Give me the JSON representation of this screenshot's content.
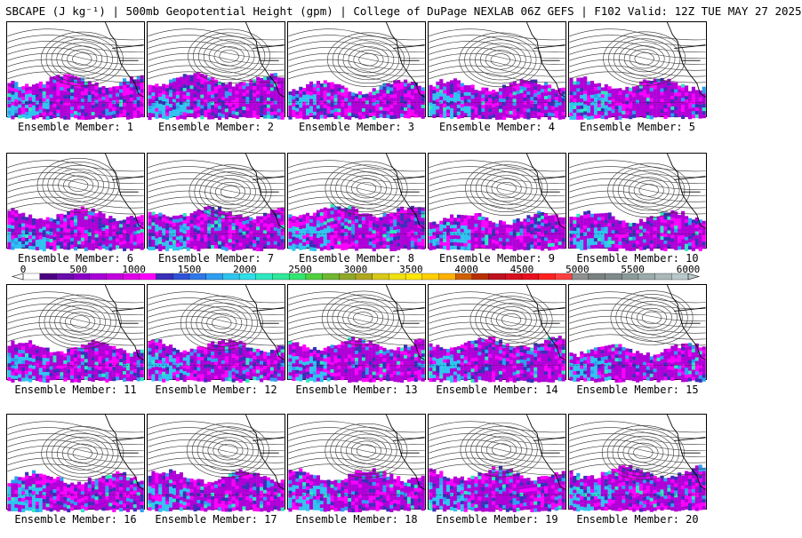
{
  "title": "SBCAPE (J kg⁻¹) | 500mb Geopotential Height (gpm) | College of DuPage NEXLAB 06Z GEFS | F102 Valid: 12Z TUE MAY 27 2025",
  "member_label_prefix": "Ensemble Member: ",
  "members": [
    "1",
    "2",
    "3",
    "4",
    "5",
    "6",
    "7",
    "8",
    "9",
    "10",
    "11",
    "12",
    "13",
    "14",
    "15",
    "16",
    "17",
    "18",
    "19",
    "20"
  ],
  "colorbar": {
    "tick_labels": [
      "0",
      "500",
      "1000",
      "1500",
      "2000",
      "2500",
      "3000",
      "3500",
      "4000",
      "4500",
      "5000",
      "5500",
      "6000"
    ],
    "colors": [
      "#ffffff",
      "#4b0082",
      "#6a0dad",
      "#8b00c8",
      "#a800d8",
      "#c400e0",
      "#e000e8",
      "#ff00ff",
      "#3a2fb8",
      "#2f52d8",
      "#2f78e8",
      "#2f9ef0",
      "#2fc4f0",
      "#2fe0e8",
      "#2fe8c0",
      "#2fe89a",
      "#2fe870",
      "#4fd040",
      "#70b830",
      "#90a828",
      "#b0a820",
      "#d8c818",
      "#f0e010",
      "#ffe800",
      "#ffd000",
      "#ffb000",
      "#d06000",
      "#b83000",
      "#c01020",
      "#d81020",
      "#e81020",
      "#ff2020",
      "#ff4040",
      "#909090",
      "#7a8080",
      "#808a8a",
      "#8a9a9a",
      "#9aaaaa",
      "#aab8b8",
      "#b8c8c8"
    ],
    "vmin": 0,
    "vmax": 6000
  }
}
